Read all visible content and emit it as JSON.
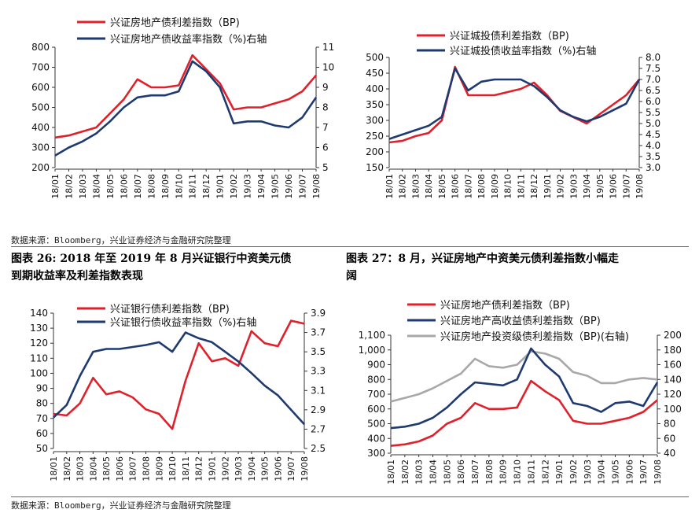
{
  "colors": {
    "red": "#e0202a",
    "navy": "#1f3a70",
    "gray": "#a8a8a8"
  },
  "source_top": "数据来源：Bloomberg，兴业证券经济与金融研究院整理",
  "source_bottom": "数据来源：Bloomberg，兴业证券经济与金融研究院整理",
  "figure_26": {
    "title_line1": "图表 26:   2018 年至 2019 年 8 月兴证银行中资美元债",
    "title_line2": "到期收益率及利差指数表现"
  },
  "figure_27": {
    "title_line1": "图表 27：8 月，兴证房地产中资美元债利差指数小幅走",
    "title_line2": "阔"
  },
  "chart_data": [
    {
      "type": "line",
      "title": "",
      "x": [
        "18/01",
        "18/02",
        "18/03",
        "18/04",
        "18/05",
        "18/06",
        "18/07",
        "18/08",
        "18/09",
        "18/10",
        "18/11",
        "18/12",
        "19/01",
        "19/02",
        "19/03",
        "19/04",
        "19/05",
        "19/06",
        "19/07",
        "19/08"
      ],
      "ylim_left": [
        200,
        800
      ],
      "yticks_left": [
        200,
        300,
        400,
        500,
        600,
        700,
        800
      ],
      "ylim_right": [
        5,
        11
      ],
      "yticks_right": [
        5,
        6,
        7,
        8,
        9,
        10,
        11
      ],
      "series": [
        {
          "name": "兴证房地产债利差指数（BP)",
          "axis": "left",
          "color": "red",
          "values": [
            350,
            360,
            380,
            400,
            470,
            540,
            640,
            600,
            600,
            610,
            760,
            690,
            620,
            490,
            500,
            500,
            520,
            540,
            580,
            660
          ]
        },
        {
          "name": "兴证房地产债收益率指数（%)右轴",
          "axis": "right",
          "color": "navy",
          "values": [
            5.6,
            6.0,
            6.3,
            6.7,
            7.3,
            8.0,
            8.5,
            8.6,
            8.6,
            8.8,
            10.3,
            9.8,
            9.0,
            7.2,
            7.3,
            7.3,
            7.1,
            7.0,
            7.5,
            8.5
          ]
        }
      ]
    },
    {
      "type": "line",
      "title": "",
      "x": [
        "18/01",
        "18/02",
        "18/03",
        "18/04",
        "18/05",
        "18/06",
        "18/07",
        "18/08",
        "18/09",
        "18/10",
        "18/11",
        "18/12",
        "19/01",
        "19/02",
        "19/03",
        "19/04",
        "19/05",
        "19/06",
        "19/07",
        "19/08"
      ],
      "ylim_left": [
        150,
        500
      ],
      "yticks_left": [
        150,
        200,
        250,
        300,
        350,
        400,
        450,
        500
      ],
      "ylim_right": [
        3.0,
        8.0
      ],
      "yticks_right": [
        3.0,
        3.5,
        4.0,
        4.5,
        5.0,
        5.5,
        6.0,
        6.5,
        7.0,
        7.5,
        8.0
      ],
      "series": [
        {
          "name": "兴证城投债利差指数（BP)",
          "axis": "left",
          "color": "red",
          "values": [
            230,
            235,
            250,
            260,
            300,
            470,
            380,
            380,
            380,
            390,
            400,
            420,
            380,
            330,
            310,
            290,
            320,
            350,
            380,
            430
          ]
        },
        {
          "name": "兴证城投债收益率指数（%)右轴",
          "axis": "right",
          "color": "navy",
          "values": [
            4.3,
            4.5,
            4.7,
            4.9,
            5.3,
            7.5,
            6.5,
            6.9,
            7.0,
            7.0,
            7.0,
            6.7,
            6.2,
            5.6,
            5.3,
            5.1,
            5.3,
            5.6,
            5.9,
            7.0
          ]
        }
      ]
    },
    {
      "type": "line",
      "title": "",
      "x": [
        "18/01",
        "18/02",
        "18/03",
        "18/04",
        "18/05",
        "18/06",
        "18/07",
        "18/08",
        "18/09",
        "18/10",
        "18/11",
        "18/12",
        "19/01",
        "19/02",
        "19/03",
        "19/04",
        "19/05",
        "19/06",
        "19/07",
        "19/08"
      ],
      "ylim_left": [
        50,
        140
      ],
      "yticks_left": [
        50,
        60,
        70,
        80,
        90,
        100,
        110,
        120,
        130,
        140
      ],
      "ylim_right": [
        2.5,
        3.9
      ],
      "yticks_right": [
        2.5,
        2.7,
        2.9,
        3.1,
        3.3,
        3.5,
        3.7,
        3.9
      ],
      "series": [
        {
          "name": "兴证银行债利差指数（BP)",
          "axis": "left",
          "color": "red",
          "values": [
            73,
            72,
            80,
            97,
            86,
            88,
            84,
            76,
            73,
            63,
            95,
            120,
            108,
            110,
            105,
            128,
            120,
            118,
            135,
            133
          ]
        },
        {
          "name": "兴证银行债收益率指数（%)右轴",
          "axis": "right",
          "color": "navy",
          "values": [
            2.82,
            2.95,
            3.25,
            3.5,
            3.53,
            3.53,
            3.55,
            3.57,
            3.6,
            3.5,
            3.7,
            3.64,
            3.6,
            3.5,
            3.4,
            3.28,
            3.15,
            3.05,
            2.9,
            2.75
          ]
        }
      ]
    },
    {
      "type": "line",
      "title": "",
      "x": [
        "18/01",
        "18/02",
        "18/03",
        "18/04",
        "18/05",
        "18/06",
        "18/07",
        "18/08",
        "18/09",
        "18/10",
        "18/11",
        "18/12",
        "19/01",
        "19/02",
        "19/03",
        "19/04",
        "19/05",
        "19/06",
        "19/07",
        "19/08"
      ],
      "ylim_left": [
        300,
        1100
      ],
      "yticks_left": [
        "300",
        "400",
        "500",
        "600",
        "700",
        "800",
        "900",
        "1,000",
        "1,100"
      ],
      "ylim_right": [
        40,
        200
      ],
      "yticks_right": [
        40,
        60,
        80,
        100,
        120,
        140,
        160,
        180,
        200
      ],
      "series": [
        {
          "name": "兴证房地产债利差指数（BP)",
          "axis": "left",
          "color": "red",
          "values": [
            350,
            360,
            380,
            420,
            500,
            540,
            640,
            600,
            600,
            610,
            790,
            720,
            660,
            520,
            500,
            500,
            520,
            540,
            580,
            660
          ]
        },
        {
          "name": "兴证房地产高收益债利差指数（BP)",
          "axis": "left",
          "color": "navy",
          "values": [
            470,
            480,
            500,
            540,
            610,
            700,
            780,
            770,
            760,
            800,
            1010,
            900,
            820,
            640,
            620,
            580,
            640,
            650,
            620,
            780
          ]
        },
        {
          "name": "兴证房地产投资级债利差指数（BP)(右轴)",
          "axis": "right",
          "color": "gray",
          "values": [
            110,
            115,
            120,
            128,
            138,
            148,
            168,
            158,
            156,
            160,
            178,
            175,
            168,
            150,
            145,
            135,
            135,
            140,
            142,
            140
          ]
        }
      ]
    }
  ]
}
